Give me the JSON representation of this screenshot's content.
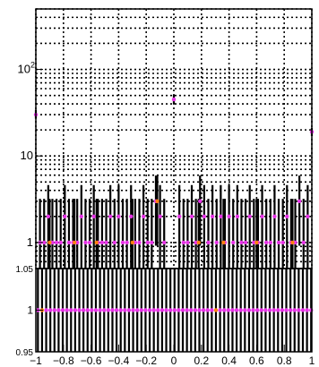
{
  "chart_data": [
    {
      "type": "scatter",
      "title": "",
      "xlabel": "",
      "ylabel": "",
      "log_y": true,
      "grid": "dotted",
      "xlim": [
        -1,
        1
      ],
      "ylim": [
        0.5,
        500
      ],
      "y_ticks": [
        {
          "value": 1,
          "label": "1"
        },
        {
          "value": 10,
          "label": "10"
        },
        {
          "value": 100,
          "label": "10",
          "exp": "2"
        }
      ],
      "colors": {
        "magenta": "#e633e6",
        "orange": "#ff7f0e",
        "line": "#000000"
      },
      "series": [
        {
          "color": "magenta",
          "points": [
            {
              "x": -1.0,
              "y": 30,
              "err": [
                27,
                34
              ]
            },
            {
              "x": 0.0,
              "y": 45,
              "err": [
                40,
                51
              ]
            },
            {
              "x": 1.0,
              "y": 19,
              "err": [
                17,
                21
              ]
            },
            {
              "x": -0.97,
              "y": 1
            },
            {
              "x": -0.94,
              "y": 1
            },
            {
              "x": -0.91,
              "y": 2
            },
            {
              "x": -0.88,
              "y": 1
            },
            {
              "x": -0.85,
              "y": 1
            },
            {
              "x": -0.82,
              "y": 1
            },
            {
              "x": -0.79,
              "y": 2
            },
            {
              "x": -0.76,
              "y": 1
            },
            {
              "x": -0.73,
              "y": 1
            },
            {
              "x": -0.7,
              "y": 1
            },
            {
              "x": -0.67,
              "y": 2
            },
            {
              "x": -0.64,
              "y": 1
            },
            {
              "x": -0.61,
              "y": 1
            },
            {
              "x": -0.58,
              "y": 2
            },
            {
              "x": -0.55,
              "y": 1
            },
            {
              "x": -0.52,
              "y": 1
            },
            {
              "x": -0.49,
              "y": 1
            },
            {
              "x": -0.46,
              "y": 2
            },
            {
              "x": -0.43,
              "y": 1
            },
            {
              "x": -0.4,
              "y": 2
            },
            {
              "x": -0.37,
              "y": 1
            },
            {
              "x": -0.34,
              "y": 1
            },
            {
              "x": -0.31,
              "y": 2
            },
            {
              "x": -0.28,
              "y": 1
            },
            {
              "x": -0.25,
              "y": 1
            },
            {
              "x": -0.22,
              "y": 2
            },
            {
              "x": -0.19,
              "y": 1
            },
            {
              "x": -0.16,
              "y": 1
            },
            {
              "x": -0.13,
              "y": 3
            },
            {
              "x": -0.1,
              "y": 2
            },
            {
              "x": -0.07,
              "y": 1
            },
            {
              "x": 0.04,
              "y": 2
            },
            {
              "x": 0.07,
              "y": 1
            },
            {
              "x": 0.1,
              "y": 1
            },
            {
              "x": 0.13,
              "y": 2
            },
            {
              "x": 0.16,
              "y": 1
            },
            {
              "x": 0.19,
              "y": 3
            },
            {
              "x": 0.22,
              "y": 2
            },
            {
              "x": 0.25,
              "y": 1
            },
            {
              "x": 0.28,
              "y": 2
            },
            {
              "x": 0.31,
              "y": 1
            },
            {
              "x": 0.34,
              "y": 2
            },
            {
              "x": 0.37,
              "y": 1
            },
            {
              "x": 0.4,
              "y": 2
            },
            {
              "x": 0.43,
              "y": 1
            },
            {
              "x": 0.46,
              "y": 2
            },
            {
              "x": 0.49,
              "y": 1
            },
            {
              "x": 0.52,
              "y": 1
            },
            {
              "x": 0.55,
              "y": 2
            },
            {
              "x": 0.58,
              "y": 1
            },
            {
              "x": 0.61,
              "y": 1
            },
            {
              "x": 0.64,
              "y": 2
            },
            {
              "x": 0.67,
              "y": 1
            },
            {
              "x": 0.7,
              "y": 1
            },
            {
              "x": 0.73,
              "y": 2
            },
            {
              "x": 0.76,
              "y": 1
            },
            {
              "x": 0.79,
              "y": 1
            },
            {
              "x": 0.82,
              "y": 2
            },
            {
              "x": 0.85,
              "y": 1
            },
            {
              "x": 0.88,
              "y": 1
            },
            {
              "x": 0.91,
              "y": 3
            },
            {
              "x": 0.94,
              "y": 1
            },
            {
              "x": 0.97,
              "y": 2
            }
          ]
        },
        {
          "color": "orange",
          "points": [
            {
              "x": -0.9,
              "y": 1
            },
            {
              "x": -0.72,
              "y": 1
            },
            {
              "x": -0.56,
              "y": 1
            },
            {
              "x": -0.3,
              "y": 1
            },
            {
              "x": -0.12,
              "y": 3
            },
            {
              "x": 0.18,
              "y": 1
            },
            {
              "x": 0.36,
              "y": 1
            },
            {
              "x": 0.6,
              "y": 1
            },
            {
              "x": 0.86,
              "y": 1
            }
          ]
        }
      ]
    },
    {
      "type": "scatter",
      "title": "",
      "xlabel": "",
      "ylabel": "",
      "xlim": [
        -1,
        1
      ],
      "ylim": [
        0.95,
        1.05
      ],
      "y_ticks": [
        {
          "value": 0.95,
          "label": "0.95"
        },
        {
          "value": 1.0,
          "label": "1"
        },
        {
          "value": 1.05,
          "label": "1.05"
        }
      ],
      "x_ticks": [
        {
          "value": -1.0,
          "label": "−1"
        },
        {
          "value": -0.8,
          "label": "−0.8"
        },
        {
          "value": -0.6,
          "label": "−0.6"
        },
        {
          "value": -0.4,
          "label": "−0.4"
        },
        {
          "value": -0.2,
          "label": "−0.2"
        },
        {
          "value": 0.0,
          "label": "0"
        },
        {
          "value": 0.2,
          "label": "0.2"
        },
        {
          "value": 0.4,
          "label": "0.4"
        },
        {
          "value": 0.6,
          "label": "0.6"
        },
        {
          "value": 0.8,
          "label": "0.8"
        },
        {
          "value": 1.0,
          "label": "1"
        }
      ],
      "ratio_value": 1,
      "bin_edges_from": -1,
      "bin_width": 0.03,
      "bin_count": 67,
      "orange_bins_x": [
        -0.95,
        -0.6,
        -0.25,
        0.3,
        0.65,
        0.95
      ],
      "empty_bins_x": [
        -0.04,
        -0.01,
        0.01
      ]
    }
  ]
}
